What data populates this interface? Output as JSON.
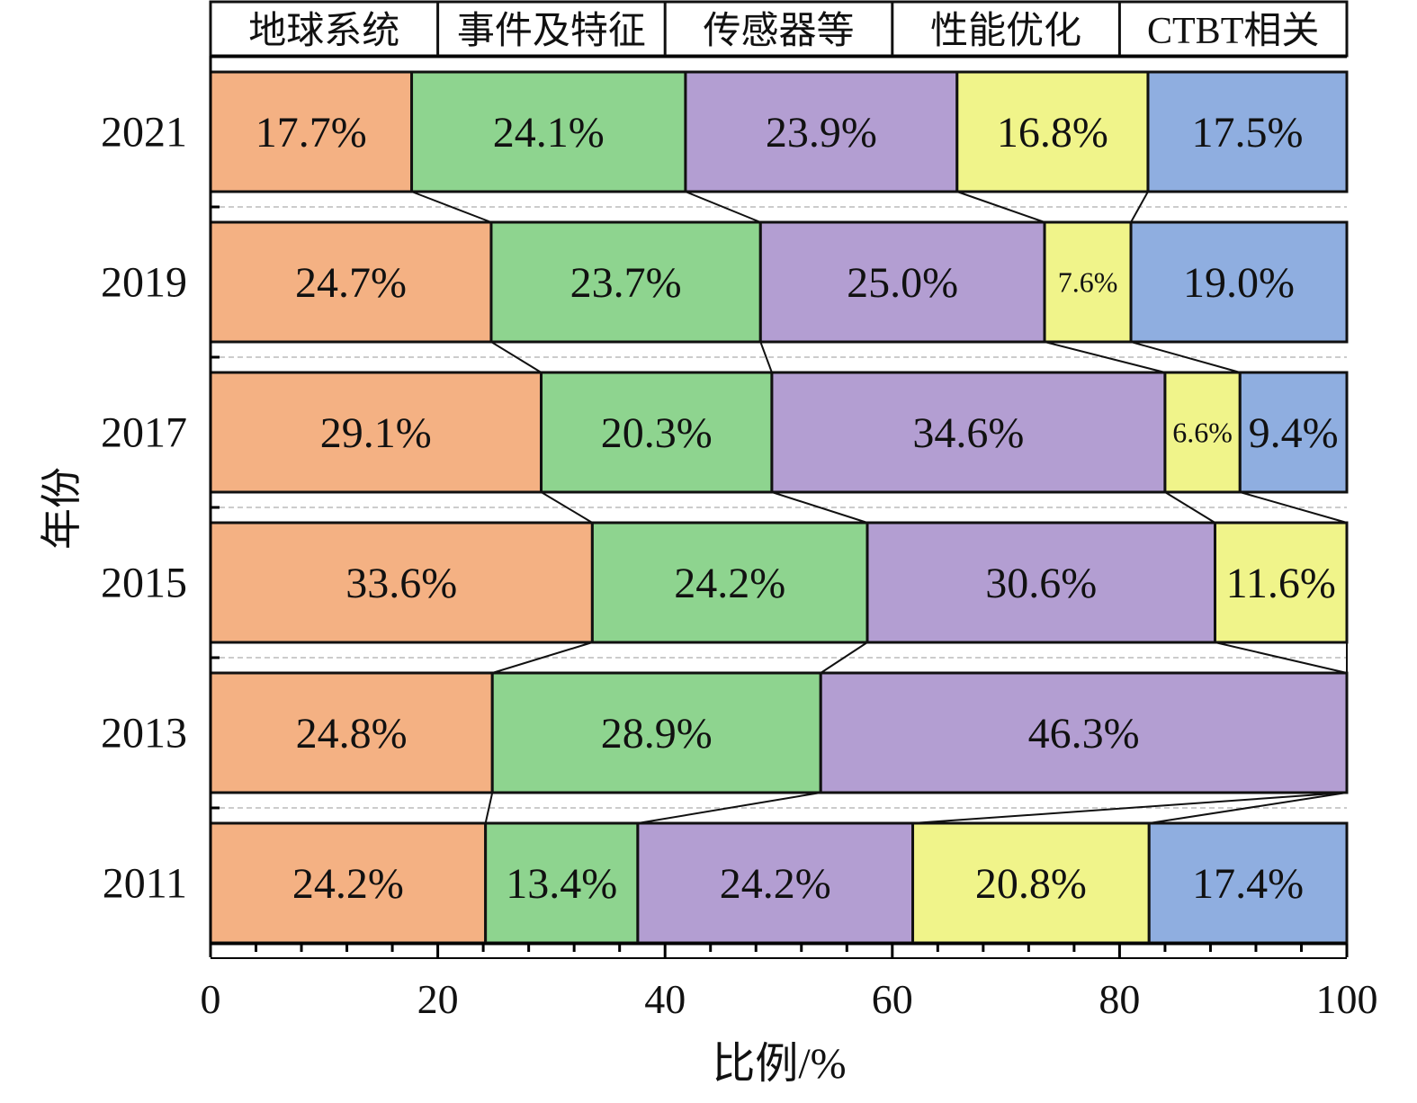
{
  "chart_data": {
    "type": "bar",
    "orientation": "horizontal",
    "stacked": true,
    "categories": [
      "2021",
      "2019",
      "2017",
      "2015",
      "2013",
      "2011"
    ],
    "series": [
      {
        "name": "地球系统",
        "color": "#F4B183",
        "values": [
          17.7,
          24.7,
          29.1,
          33.6,
          24.8,
          24.2
        ],
        "labels": [
          "17.7%",
          "24.7%",
          "29.1%",
          "33.6%",
          "24.8%",
          "24.2%"
        ]
      },
      {
        "name": "事件及特征",
        "color": "#8ED48F",
        "values": [
          24.1,
          23.7,
          20.3,
          24.2,
          28.9,
          13.4
        ],
        "labels": [
          "24.1%",
          "23.7%",
          "20.3%",
          "24.2%",
          "28.9%",
          "13.4%"
        ]
      },
      {
        "name": "传感器等",
        "color": "#B39ED2",
        "values": [
          23.9,
          25.0,
          34.6,
          30.6,
          46.3,
          24.2
        ],
        "labels": [
          "23.9%",
          "25.0%",
          "34.6%",
          "30.6%",
          "46.3%",
          "24.2%"
        ]
      },
      {
        "name": "性能优化",
        "color": "#F0F48A",
        "values": [
          16.8,
          7.6,
          6.6,
          11.6,
          0,
          20.8
        ],
        "labels": [
          "16.8%",
          "7.6%",
          "6.6%",
          "11.6%",
          "",
          "20.8%"
        ]
      },
      {
        "name": "CTBT相关",
        "color": "#8FAEE0",
        "values": [
          17.5,
          19.0,
          9.4,
          0,
          0,
          17.4
        ],
        "labels": [
          "17.5%",
          "19.0%",
          "9.4%",
          "",
          "",
          "17.4%"
        ]
      }
    ],
    "xlabel": "比例/%",
    "ylabel": "年份",
    "xlim": [
      0,
      100
    ],
    "xticks": [
      "0",
      "20",
      "40",
      "60",
      "80",
      "100"
    ],
    "legend_position": "top",
    "connector_lines": true
  }
}
